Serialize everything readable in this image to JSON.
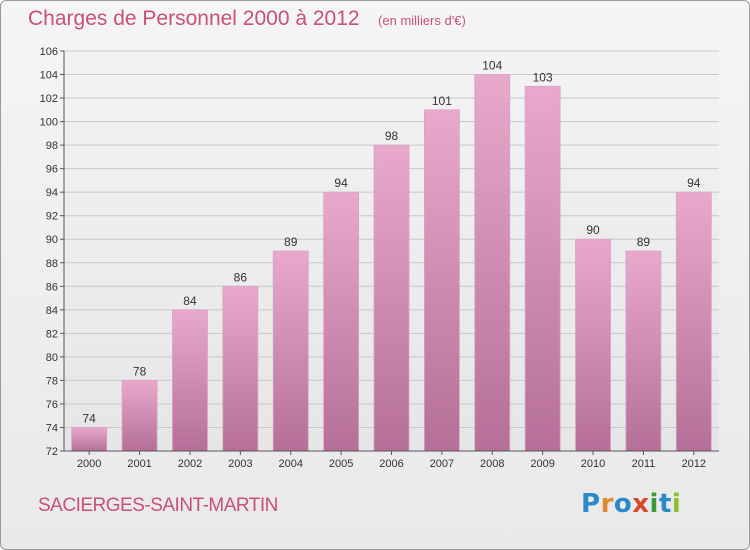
{
  "header": {
    "title": "Charges de Personnel 2000 à 2012",
    "subtitle": "(en milliers d'€)"
  },
  "footer": {
    "commune": "SACIERGES-SAINT-MARTIN"
  },
  "logo": {
    "letters": [
      "P",
      "r",
      "o",
      "x",
      "i",
      "t",
      "i"
    ],
    "colors": [
      "#2a89c8",
      "#e0882b",
      "#2a89c8",
      "#d64a2a",
      "#3a9a3a",
      "#2a89c8",
      "#8bbf2b"
    ]
  },
  "colors": {
    "bar_top": "#e8a9cc",
    "bar_bottom": "#b56f98",
    "grid": "#c8c8c8",
    "axis": "#555555",
    "text": "#333333"
  },
  "chart_data": {
    "type": "bar",
    "categories": [
      "2000",
      "2001",
      "2002",
      "2003",
      "2004",
      "2005",
      "2006",
      "2007",
      "2008",
      "2009",
      "2010",
      "2011",
      "2012"
    ],
    "values": [
      74,
      78,
      84,
      86,
      89,
      94,
      98,
      101,
      104,
      103,
      90,
      89,
      94
    ],
    "ylim": [
      72,
      106
    ],
    "yticks": [
      72,
      74,
      76,
      78,
      80,
      82,
      84,
      86,
      88,
      90,
      92,
      94,
      96,
      98,
      100,
      102,
      104,
      106
    ],
    "grid": true,
    "data_labels": true
  }
}
